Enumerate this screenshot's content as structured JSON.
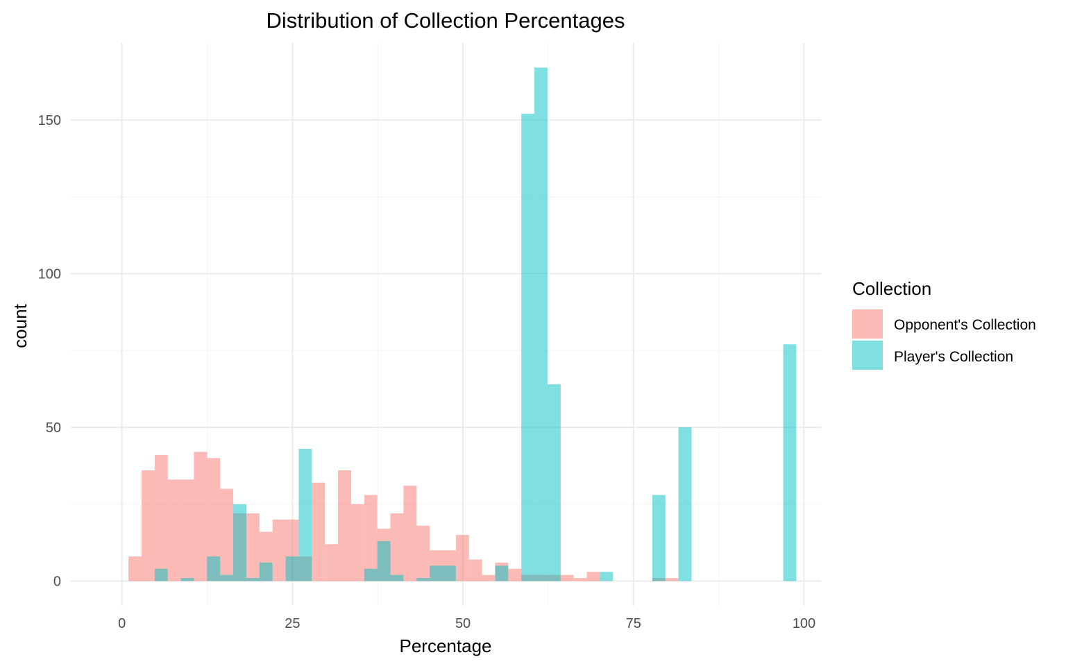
{
  "chart_data": {
    "type": "bar",
    "subtype": "overlapping-histogram",
    "title": "Distribution of Collection Percentages",
    "xlabel": "Percentage",
    "ylabel": "count",
    "xlim": [
      -7.5,
      102.5
    ],
    "ylim": [
      -8,
      175
    ],
    "x_ticks": [
      0,
      25,
      50,
      75,
      100
    ],
    "y_ticks": [
      0,
      50,
      100,
      150
    ],
    "x_tick_labels": [
      "0",
      "25",
      "50",
      "75",
      "100"
    ],
    "y_tick_labels": [
      "0",
      "50",
      "100",
      "150"
    ],
    "grid": true,
    "bin_width": 1.92,
    "bin_start": 0.96,
    "bin_centers": [
      1.92,
      3.84,
      5.76,
      7.68,
      9.6,
      11.52,
      13.44,
      15.36,
      17.28,
      19.2,
      21.12,
      23.04,
      24.96,
      26.88,
      28.8,
      30.72,
      32.64,
      34.56,
      36.48,
      38.4,
      40.32,
      42.24,
      44.16,
      46.08,
      48.0,
      49.92,
      51.84,
      53.76,
      55.68,
      57.6,
      59.52,
      61.44,
      63.36,
      65.28,
      67.2,
      69.12,
      71.04,
      72.96,
      74.88,
      76.8,
      78.72,
      80.64,
      82.56,
      84.48,
      86.4,
      88.32,
      90.24,
      92.16,
      94.08,
      96.0,
      97.92
    ],
    "legend": {
      "title": "Collection",
      "position": "right"
    },
    "series": [
      {
        "name": "Opponent's Collection",
        "color": "#F8766D",
        "opacity": 0.5,
        "values": [
          8,
          36,
          41,
          33,
          33,
          42,
          40,
          30,
          22,
          22,
          16,
          20,
          20,
          8,
          32,
          12,
          36,
          25,
          28,
          17,
          22,
          31,
          18,
          10,
          10,
          15,
          7,
          2,
          6,
          4,
          2,
          2,
          2,
          2,
          1,
          3,
          0,
          0,
          0,
          0,
          1,
          1,
          0,
          0,
          0,
          0,
          0,
          0,
          0,
          0,
          0
        ]
      },
      {
        "name": "Player's Collection",
        "color": "#00BFC4",
        "opacity": 0.5,
        "values": [
          0,
          0,
          4,
          0,
          1,
          0,
          8,
          2,
          25,
          1,
          6,
          0,
          8,
          43,
          0,
          0,
          0,
          0,
          4,
          13,
          2,
          0,
          1,
          5,
          5,
          0,
          0,
          0,
          5,
          0,
          152,
          167,
          64,
          0,
          0,
          0,
          3,
          0,
          0,
          0,
          28,
          0,
          50,
          0,
          0,
          0,
          0,
          0,
          0,
          0,
          77
        ]
      }
    ]
  }
}
